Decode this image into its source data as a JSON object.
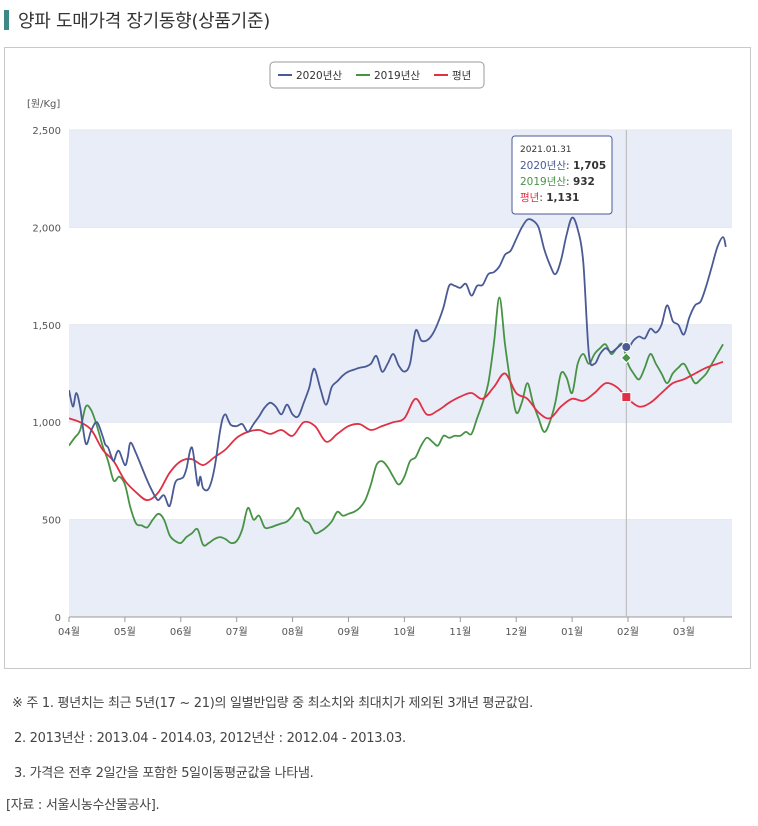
{
  "header": {
    "title": "양파 도매가격 장기동향(상품기준)"
  },
  "chart_data": {
    "type": "line",
    "unit_label": "[원/Kg]",
    "ylim": [
      0,
      2500
    ],
    "yticks": [
      "0",
      "500",
      "1,000",
      "1,500",
      "2,000",
      "2,500"
    ],
    "xticks": [
      "04월",
      "05월",
      "06월",
      "07월",
      "08월",
      "09월",
      "10월",
      "11월",
      "12월",
      "01월",
      "02월",
      "03월"
    ],
    "legend_position": "top-center",
    "series": [
      {
        "name": "2020년산",
        "color": "#4a5a94",
        "x": [
          0,
          0.07,
          0.13,
          0.2,
          0.3,
          0.4,
          0.5,
          0.6,
          0.65,
          0.7,
          0.75,
          0.8,
          0.85,
          0.9,
          1.0,
          1.05,
          1.1,
          1.2,
          1.3,
          1.4,
          1.5,
          1.55,
          1.6,
          1.7,
          1.8,
          1.9,
          2.0,
          2.05,
          2.1,
          2.2,
          2.3,
          2.35,
          2.4,
          2.5,
          2.6,
          2.7,
          2.75,
          2.8,
          2.85,
          2.9,
          3.0,
          3.1,
          3.2,
          3.3,
          3.4,
          3.5,
          3.6,
          3.7,
          3.8,
          3.9,
          4.0,
          4.1,
          4.2,
          4.3,
          4.35,
          4.4,
          4.5,
          4.6,
          4.7,
          4.8,
          4.9,
          5.0,
          5.1,
          5.2,
          5.3,
          5.4,
          5.5,
          5.6,
          5.7,
          5.8,
          5.9,
          6.0,
          6.1,
          6.2,
          6.3,
          6.4,
          6.5,
          6.6,
          6.7,
          6.8,
          6.9,
          7.0,
          7.1,
          7.2,
          7.3,
          7.4,
          7.5,
          7.6,
          7.7,
          7.8,
          7.9,
          8.0,
          8.1,
          8.2,
          8.3,
          8.4,
          8.5,
          8.6,
          8.7,
          8.8,
          8.9,
          9.0,
          9.1,
          9.2,
          9.3,
          9.4,
          9.5,
          9.6,
          9.7,
          9.8,
          9.9,
          10.0,
          10.1,
          10.2,
          10.3,
          10.4,
          10.5,
          10.6,
          10.7,
          10.8,
          10.9,
          11.0,
          11.1,
          11.2,
          11.3,
          11.4,
          11.5,
          11.6,
          11.7,
          11.75
        ],
        "values": [
          1165,
          1080,
          1150,
          1075,
          890,
          960,
          1000,
          930,
          885,
          870,
          830,
          800,
          840,
          850,
          780,
          820,
          895,
          840,
          770,
          700,
          640,
          615,
          600,
          625,
          570,
          690,
          710,
          720,
          760,
          870,
          680,
          720,
          660,
          660,
          760,
          950,
          1020,
          1040,
          1010,
          985,
          980,
          990,
          950,
          990,
          1030,
          1075,
          1100,
          1080,
          1040,
          1090,
          1040,
          1030,
          1100,
          1180,
          1250,
          1270,
          1170,
          1090,
          1180,
          1210,
          1240,
          1260,
          1270,
          1280,
          1285,
          1300,
          1340,
          1260,
          1300,
          1350,
          1290,
          1260,
          1300,
          1470,
          1420,
          1420,
          1450,
          1510,
          1590,
          1700,
          1700,
          1690,
          1710,
          1650,
          1700,
          1705,
          1760,
          1770,
          1800,
          1860,
          1880,
          1940,
          2000,
          2040,
          2035,
          2000,
          1890,
          1810,
          1760,
          1830,
          1960,
          2050,
          1990,
          1820,
          1350,
          1300,
          1350,
          1380,
          1360,
          1380,
          1400,
          1380,
          1420,
          1440,
          1430,
          1480,
          1460,
          1500,
          1600,
          1520,
          1500,
          1450,
          1540,
          1600,
          1620,
          1700,
          1800,
          1900,
          1950,
          1900
        ],
        "tooltip_value": "1,705"
      },
      {
        "name": "2019년산",
        "color": "#479345",
        "x": [
          0,
          0.1,
          0.2,
          0.3,
          0.4,
          0.5,
          0.6,
          0.7,
          0.8,
          0.9,
          1.0,
          1.1,
          1.2,
          1.3,
          1.4,
          1.5,
          1.6,
          1.7,
          1.8,
          1.9,
          2.0,
          2.1,
          2.2,
          2.3,
          2.4,
          2.5,
          2.6,
          2.7,
          2.8,
          2.9,
          3.0,
          3.1,
          3.2,
          3.3,
          3.4,
          3.5,
          3.6,
          3.7,
          3.8,
          3.9,
          4.0,
          4.1,
          4.2,
          4.3,
          4.4,
          4.5,
          4.6,
          4.7,
          4.8,
          4.9,
          5.0,
          5.1,
          5.2,
          5.3,
          5.4,
          5.5,
          5.6,
          5.7,
          5.8,
          5.9,
          6.0,
          6.1,
          6.2,
          6.3,
          6.4,
          6.5,
          6.6,
          6.7,
          6.8,
          6.9,
          7.0,
          7.1,
          7.2,
          7.3,
          7.4,
          7.5,
          7.6,
          7.7,
          7.8,
          7.9,
          8.0,
          8.1,
          8.2,
          8.3,
          8.4,
          8.5,
          8.6,
          8.7,
          8.8,
          8.9,
          9.0,
          9.1,
          9.2,
          9.3,
          9.4,
          9.5,
          9.6,
          9.7,
          9.8,
          9.9,
          10.0,
          10.1,
          10.2,
          10.3,
          10.4,
          10.5,
          10.6,
          10.7,
          10.8,
          10.9,
          11.0,
          11.1,
          11.2,
          11.3,
          11.4,
          11.5,
          11.6,
          11.7
        ],
        "values": [
          880,
          920,
          960,
          1080,
          1060,
          980,
          880,
          800,
          700,
          720,
          680,
          560,
          480,
          470,
          460,
          500,
          530,
          500,
          420,
          390,
          380,
          410,
          430,
          450,
          370,
          380,
          400,
          410,
          400,
          380,
          390,
          450,
          560,
          500,
          520,
          460,
          460,
          470,
          480,
          490,
          520,
          560,
          500,
          480,
          430,
          440,
          460,
          490,
          540,
          520,
          530,
          540,
          560,
          600,
          680,
          780,
          800,
          770,
          720,
          680,
          720,
          800,
          820,
          880,
          920,
          900,
          880,
          930,
          920,
          930,
          930,
          950,
          940,
          1020,
          1100,
          1200,
          1400,
          1640,
          1400,
          1200,
          1050,
          1100,
          1200,
          1100,
          1020,
          950,
          1000,
          1100,
          1250,
          1230,
          1150,
          1300,
          1350,
          1300,
          1350,
          1380,
          1400,
          1350,
          1380,
          1400,
          1300,
          1250,
          1220,
          1280,
          1350,
          1300,
          1250,
          1200,
          1250,
          1280,
          1300,
          1250,
          1200,
          1220,
          1250,
          1300,
          1350,
          1400
        ],
        "tooltip_value": "932"
      },
      {
        "name": "평년",
        "color": "#e03044",
        "x": [
          0,
          0.2,
          0.4,
          0.6,
          0.8,
          1.0,
          1.2,
          1.4,
          1.6,
          1.8,
          2.0,
          2.2,
          2.4,
          2.6,
          2.8,
          3.0,
          3.2,
          3.4,
          3.6,
          3.8,
          4.0,
          4.2,
          4.4,
          4.6,
          4.8,
          5.0,
          5.2,
          5.4,
          5.6,
          5.8,
          6.0,
          6.2,
          6.4,
          6.6,
          6.8,
          7.0,
          7.2,
          7.4,
          7.6,
          7.8,
          8.0,
          8.2,
          8.4,
          8.6,
          8.8,
          9.0,
          9.2,
          9.4,
          9.6,
          9.8,
          10.0,
          10.2,
          10.4,
          10.6,
          10.8,
          11.0,
          11.2,
          11.4,
          11.6,
          11.7
        ],
        "values": [
          1020,
          1000,
          960,
          860,
          800,
          700,
          640,
          600,
          640,
          740,
          800,
          810,
          780,
          820,
          860,
          920,
          950,
          960,
          940,
          960,
          930,
          1000,
          980,
          900,
          940,
          980,
          990,
          960,
          980,
          1000,
          1020,
          1120,
          1040,
          1060,
          1100,
          1131,
          1150,
          1120,
          1180,
          1250,
          1150,
          1120,
          1050,
          1020,
          1080,
          1120,
          1110,
          1150,
          1200,
          1180,
          1120,
          1080,
          1100,
          1150,
          1200,
          1220,
          1250,
          1280,
          1300,
          1310
        ],
        "tooltip_value": "1,131"
      }
    ],
    "tooltip": {
      "date": "2021.01.31",
      "x": 9.97
    }
  },
  "notes": [
    "※ 주 1. 평년치는 최근 5년(17 ~ 21)의 일별반입량 중 최소치와 최대치가 제외된 3개년 평균값임.",
    "2. 2013년산 : 2013.04 - 2014.03, 2012년산 : 2012.04 - 2013.03.",
    "3. 가격은 전후 2일간을 포함한 5일이동평균값을 나타냄."
  ],
  "source": "[자료 : 서울시농수산물공사]."
}
